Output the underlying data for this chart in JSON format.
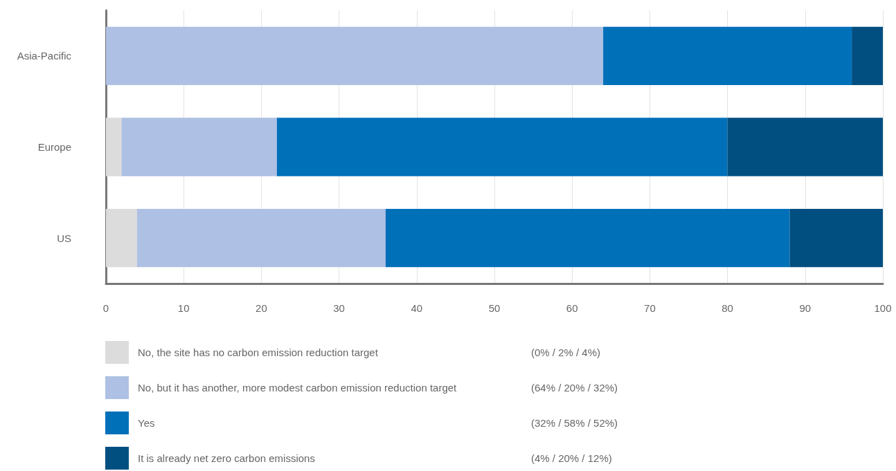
{
  "chart_data": {
    "type": "bar",
    "orientation": "horizontal",
    "stacked": true,
    "categories": [
      "Asia-Pacific",
      "Europe",
      "US"
    ],
    "series": [
      {
        "name": "No, the site has no carbon emission reduction target",
        "color": "#dcdcdc",
        "values": [
          0,
          2,
          4
        ]
      },
      {
        "name": "No, but it has another, more modest carbon emission reduction target",
        "color": "#aec0e3",
        "values": [
          64,
          20,
          32
        ]
      },
      {
        "name": "Yes",
        "color": "#0070b9",
        "values": [
          32,
          58,
          52
        ]
      },
      {
        "name": "It is already net zero carbon emissions",
        "color": "#004f80",
        "values": [
          4,
          20,
          12
        ]
      }
    ],
    "annotations": [
      "(0% / 2% / 4%)",
      "(64% / 20% / 32%)",
      "(32% / 58% / 52%)",
      "(4% / 20% / 12%)"
    ],
    "xlim": [
      0,
      100
    ],
    "xticks": [
      0,
      10,
      20,
      30,
      40,
      50,
      60,
      70,
      80,
      90,
      100
    ],
    "grid": "x",
    "legend": "bottom"
  }
}
